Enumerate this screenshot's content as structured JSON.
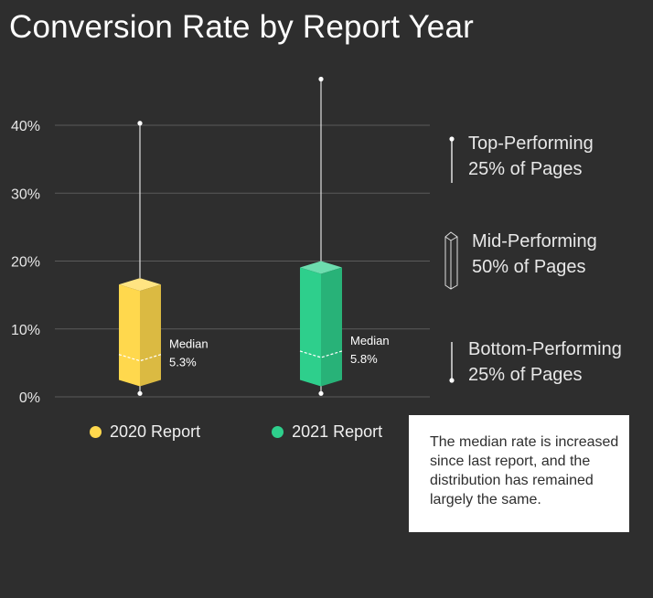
{
  "chart_data": {
    "type": "boxplot",
    "title": "Conversion Rate by Report Year",
    "yticks": [
      "0%",
      "10%",
      "20%",
      "30%",
      "40%"
    ],
    "ylim": [
      0,
      40
    ],
    "grid": true,
    "series": [
      {
        "name": "2020 Report",
        "color": "#ffd84d",
        "min": 0.5,
        "q1": 2.5,
        "median": 5.3,
        "q3": 17.5,
        "max": 40.3,
        "median_label": "Median",
        "median_value": "5.3%"
      },
      {
        "name": "2021 Report",
        "color": "#2ecf8c",
        "min": 0.5,
        "q1": 2.5,
        "median": 5.8,
        "q3": 20,
        "max": 46.8,
        "median_label": "Median",
        "median_value": "5.8%"
      }
    ],
    "legend_position": "bottom"
  },
  "key": {
    "top": [
      "Top-Performing",
      "25% of Pages"
    ],
    "mid": [
      "Mid-Performing",
      "50% of Pages"
    ],
    "bottom": [
      "Bottom-Performing",
      "25% of Pages"
    ]
  },
  "note": "The median rate is increased since last report, and the distribution has remained largely the same.",
  "colors": {
    "background": "#2e2e2e",
    "grid": "#5a5a5a",
    "whisker": "#e0e0e0"
  }
}
